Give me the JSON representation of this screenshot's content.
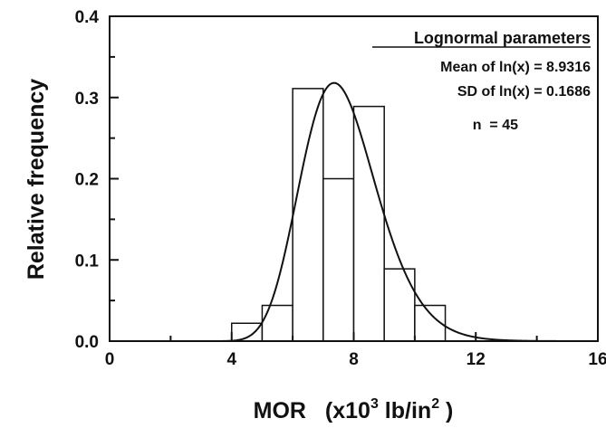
{
  "chart_data": {
    "type": "bar",
    "subtype": "histogram-with-fitted-curve",
    "xlabel_prefix": "MOR",
    "xlabel_units_parts": [
      "(x10",
      "3",
      " lb/in",
      "2",
      " )"
    ],
    "ylabel": "Relative frequency",
    "xlim": [
      0,
      16
    ],
    "ylim": [
      0,
      0.4
    ],
    "xticks": [
      0,
      4,
      8,
      12,
      16
    ],
    "yticks": [
      0.0,
      0.1,
      0.2,
      0.3,
      0.4
    ],
    "ytick_labels": [
      "0.0",
      "0.1",
      "0.2",
      "0.3",
      "0.4"
    ],
    "grid": false,
    "bins": [
      {
        "x0": 4,
        "x1": 5,
        "value": 0.022
      },
      {
        "x0": 5,
        "x1": 6,
        "value": 0.044
      },
      {
        "x0": 6,
        "x1": 7,
        "value": 0.311
      },
      {
        "x0": 7,
        "x1": 8,
        "value": 0.2
      },
      {
        "x0": 8,
        "x1": 9,
        "value": 0.289
      },
      {
        "x0": 9,
        "x1": 10,
        "value": 0.089
      },
      {
        "x0": 10,
        "x1": 11,
        "value": 0.044
      }
    ],
    "curve": {
      "distribution": "lognormal",
      "mean_ln": 8.9316,
      "sd_ln": 0.1686,
      "x_scale": 1000,
      "peak": 0.318
    },
    "annotations": {
      "heading": "Lognormal parameters",
      "lines": [
        "Mean of ln(x) = 8.9316",
        "SD of ln(x) = 0.1686",
        "n  = 45"
      ]
    }
  }
}
